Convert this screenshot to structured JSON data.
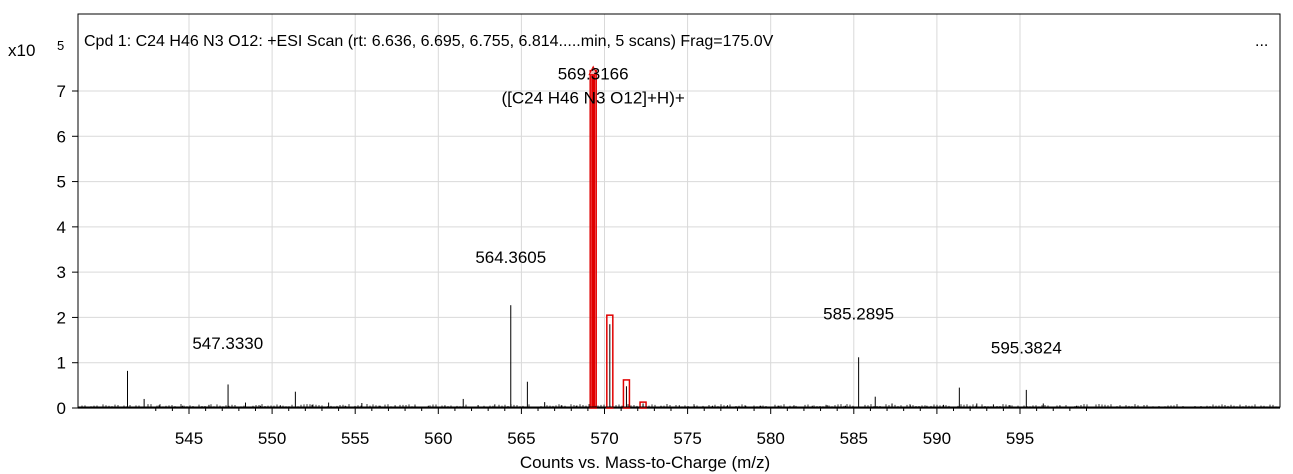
{
  "chart_data": {
    "type": "bar",
    "title": "Cpd 1: C24 H46 N3 O12: +ESI Scan (rt: 6.636, 6.695, 6.755, 6.814.....min, 5 scans) Frag=175.0V",
    "title_more": "...",
    "xlabel": "Counts vs. Mass-to-Charge (m/z)",
    "y_multiplier": "x10",
    "y_exponent": "5",
    "xlim": [
      542.5,
      599.2
    ],
    "ylim": [
      0,
      7.8
    ],
    "x_ticks": [
      545,
      550,
      555,
      560,
      565,
      570,
      575,
      580,
      585,
      590,
      595
    ],
    "y_ticks": [
      0,
      1,
      2,
      3,
      4,
      5,
      6,
      7
    ],
    "grid": true,
    "colors": {
      "spectrum": "#000000",
      "isotope_box": "#e00000",
      "grid": "#d9d9d9",
      "axis": "#000000"
    },
    "series": [
      {
        "type": "stick",
        "color": "#000000",
        "peaks": [
          {
            "x": 541.3,
            "y": 0.82
          },
          {
            "x": 542.3,
            "y": 0.2
          },
          {
            "x": 543.2,
            "y": 0.06
          },
          {
            "x": 544.6,
            "y": 0.05
          },
          {
            "x": 546.2,
            "y": 0.07
          },
          {
            "x": 547.35,
            "y": 0.52
          },
          {
            "x": 548.4,
            "y": 0.12
          },
          {
            "x": 549.3,
            "y": 0.05
          },
          {
            "x": 550.5,
            "y": 0.06
          },
          {
            "x": 551.4,
            "y": 0.36
          },
          {
            "x": 552.4,
            "y": 0.07
          },
          {
            "x": 553.4,
            "y": 0.12
          },
          {
            "x": 554.4,
            "y": 0.05
          },
          {
            "x": 555.4,
            "y": 0.11
          },
          {
            "x": 556.5,
            "y": 0.05
          },
          {
            "x": 557.4,
            "y": 0.06
          },
          {
            "x": 558.6,
            "y": 0.05
          },
          {
            "x": 559.4,
            "y": 0.05
          },
          {
            "x": 560.4,
            "y": 0.06
          },
          {
            "x": 561.5,
            "y": 0.2
          },
          {
            "x": 562.4,
            "y": 0.06
          },
          {
            "x": 563.4,
            "y": 0.08
          },
          {
            "x": 564.36,
            "y": 2.27
          },
          {
            "x": 565.36,
            "y": 0.58
          },
          {
            "x": 566.4,
            "y": 0.13
          },
          {
            "x": 567.4,
            "y": 0.06
          },
          {
            "x": 568.3,
            "y": 0.05
          },
          {
            "x": 569.32,
            "y": 7.35
          },
          {
            "x": 570.32,
            "y": 1.85
          },
          {
            "x": 571.32,
            "y": 0.48
          },
          {
            "x": 572.32,
            "y": 0.1
          },
          {
            "x": 573.4,
            "y": 0.05
          },
          {
            "x": 574.5,
            "y": 0.06
          },
          {
            "x": 575.4,
            "y": 0.05
          },
          {
            "x": 576.5,
            "y": 0.05
          },
          {
            "x": 577.4,
            "y": 0.06
          },
          {
            "x": 578.5,
            "y": 0.05
          },
          {
            "x": 579.4,
            "y": 0.05
          },
          {
            "x": 580.5,
            "y": 0.05
          },
          {
            "x": 581.4,
            "y": 0.06
          },
          {
            "x": 582.5,
            "y": 0.05
          },
          {
            "x": 583.4,
            "y": 0.06
          },
          {
            "x": 584.5,
            "y": 0.05
          },
          {
            "x": 585.29,
            "y": 1.12
          },
          {
            "x": 586.29,
            "y": 0.25
          },
          {
            "x": 587.3,
            "y": 0.1
          },
          {
            "x": 588.4,
            "y": 0.06
          },
          {
            "x": 589.4,
            "y": 0.05
          },
          {
            "x": 590.4,
            "y": 0.07
          },
          {
            "x": 591.35,
            "y": 0.45
          },
          {
            "x": 592.4,
            "y": 0.1
          },
          {
            "x": 593.4,
            "y": 0.08
          },
          {
            "x": 594.4,
            "y": 0.06
          },
          {
            "x": 595.38,
            "y": 0.4
          },
          {
            "x": 596.4,
            "y": 0.1
          },
          {
            "x": 597.4,
            "y": 0.06
          },
          {
            "x": 598.4,
            "y": 0.05
          }
        ]
      }
    ],
    "isotope_boxes": [
      {
        "x": 569.32,
        "y": 7.45
      },
      {
        "x": 570.32,
        "y": 2.05
      },
      {
        "x": 571.32,
        "y": 0.62
      },
      {
        "x": 572.32,
        "y": 0.13
      }
    ],
    "annotations": [
      {
        "x": 564.3605,
        "y": 3.2,
        "lines": [
          "564.3605"
        ]
      },
      {
        "x": 569.3166,
        "y": 7.25,
        "lines": [
          "569.3166",
          "([C24 H46 N3 O12]+H)+"
        ]
      },
      {
        "x": 585.2895,
        "y": 1.95,
        "lines": [
          "585.2895"
        ]
      },
      {
        "x": 547.333,
        "y": 1.3,
        "lines": [
          "547.3330"
        ]
      },
      {
        "x": 595.3824,
        "y": 1.2,
        "lines": [
          "595.3824"
        ]
      }
    ]
  }
}
